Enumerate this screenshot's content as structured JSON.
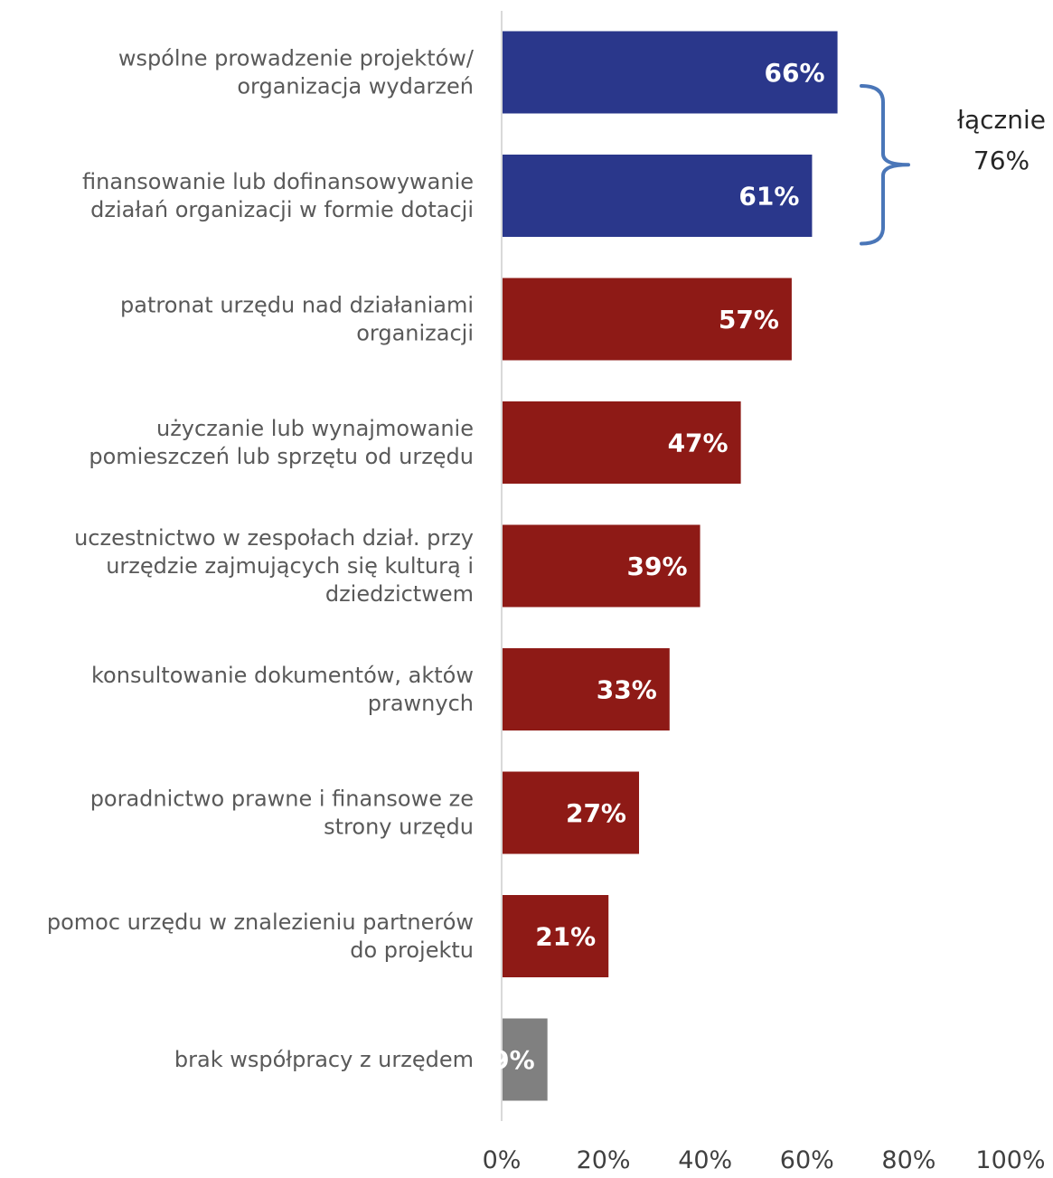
{
  "chart_data": {
    "type": "bar",
    "orientation": "horizontal",
    "categories": [
      [
        "wspólne prowadzenie projektów/",
        "organizacja wydarzeń"
      ],
      [
        "finansowanie lub dofinansowywanie",
        "działań organizacji w formie dotacji"
      ],
      [
        "patronat urzędu nad działaniami",
        "organizacji"
      ],
      [
        "użyczanie lub wynajmowanie",
        "pomieszczeń lub sprzętu od urzędu"
      ],
      [
        "uczestnictwo w zespołach dział. przy",
        "urzędzie zajmujących się kulturą i",
        "dziedzictwem"
      ],
      [
        "konsultowanie dokumentów, aktów",
        "prawnych"
      ],
      [
        "poradnictwo prawne i finansowe ze",
        "strony urzędu"
      ],
      [
        "pomoc urzędu w znalezieniu partnerów",
        "do projektu"
      ],
      [
        "brak współpracy z urzędem"
      ]
    ],
    "values": [
      66,
      61,
      57,
      47,
      39,
      33,
      27,
      21,
      9
    ],
    "value_labels": [
      "66%",
      "61%",
      "57%",
      "47%",
      "39%",
      "33%",
      "27%",
      "21%",
      "9%"
    ],
    "bar_colors": [
      "#2a378b",
      "#2a378b",
      "#8e1a16",
      "#8e1a16",
      "#8e1a16",
      "#8e1a16",
      "#8e1a16",
      "#8e1a16",
      "#808080"
    ],
    "xlim": [
      0,
      100
    ],
    "x_ticks": [
      0,
      20,
      40,
      60,
      80,
      100
    ],
    "x_tick_labels": [
      "0%",
      "20%",
      "40%",
      "60%",
      "80%",
      "100%"
    ],
    "grid": false,
    "title": "",
    "xlabel": "",
    "ylabel": "",
    "annotation": {
      "lines": [
        "łącznie",
        "76%"
      ],
      "bracket_color": "#4a76b8",
      "spans_categories": [
        0,
        1
      ]
    }
  }
}
